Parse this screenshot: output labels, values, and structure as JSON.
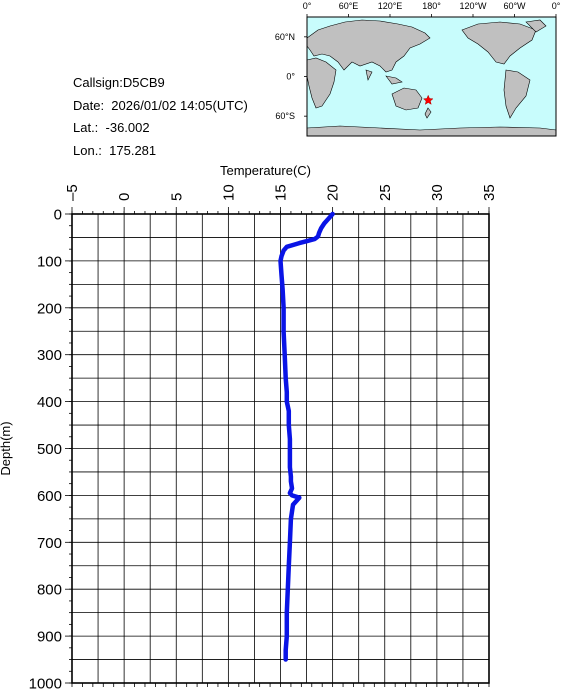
{
  "info": {
    "callsign": "Callsign:D5CB9",
    "date": "Date:  2026/01/02 14:05(UTC)",
    "lat": "Lat.:  -36.002",
    "lon": "Lon.:  175.281"
  },
  "map": {
    "top_labels": [
      "0°",
      "60°E",
      "120°E",
      "180°",
      "120°W",
      "60°W",
      "0°"
    ],
    "left_labels": [
      "60°N",
      "0°",
      "60°S"
    ],
    "marker": {
      "lat": -36.002,
      "lon": 175.281
    },
    "colors": {
      "ocean": "#c8fcfc",
      "land": "#c0c0c0",
      "marker": "#ff0000"
    }
  },
  "chart_data": {
    "type": "line",
    "xlabel": "Temperature(C)",
    "ylabel": "Depth(m)",
    "xlim": [
      -5,
      35
    ],
    "ylim": [
      1000,
      0
    ],
    "x_ticks": [
      -5,
      0,
      5,
      10,
      15,
      20,
      25,
      30,
      35
    ],
    "y_ticks": [
      0,
      100,
      200,
      300,
      400,
      500,
      600,
      700,
      800,
      900,
      1000
    ],
    "grid": true,
    "line_color": "#0a14e6",
    "series": [
      {
        "x": [
          20.0,
          19.6,
          19.2,
          18.9,
          18.7,
          18.6,
          18.3,
          17.5,
          16.8,
          16.2,
          15.6,
          15.3,
          15.1,
          15.0,
          15.1,
          15.2,
          15.3,
          15.3,
          15.4,
          15.5,
          15.6,
          15.6,
          15.8,
          15.8,
          15.9,
          15.9,
          15.9,
          16.0,
          16.0,
          16.1,
          15.9,
          16.1,
          16.8,
          16.2,
          16.0,
          15.9,
          15.8,
          15.7,
          15.6,
          15.6,
          15.5,
          15.5
        ],
        "y": [
          0,
          10,
          20,
          30,
          40,
          48,
          53,
          58,
          62,
          66,
          70,
          78,
          90,
          100,
          130,
          160,
          200,
          250,
          300,
          350,
          380,
          400,
          420,
          450,
          480,
          500,
          540,
          560,
          570,
          585,
          595,
          600,
          605,
          620,
          650,
          700,
          750,
          800,
          850,
          900,
          930,
          950
        ]
      }
    ]
  }
}
